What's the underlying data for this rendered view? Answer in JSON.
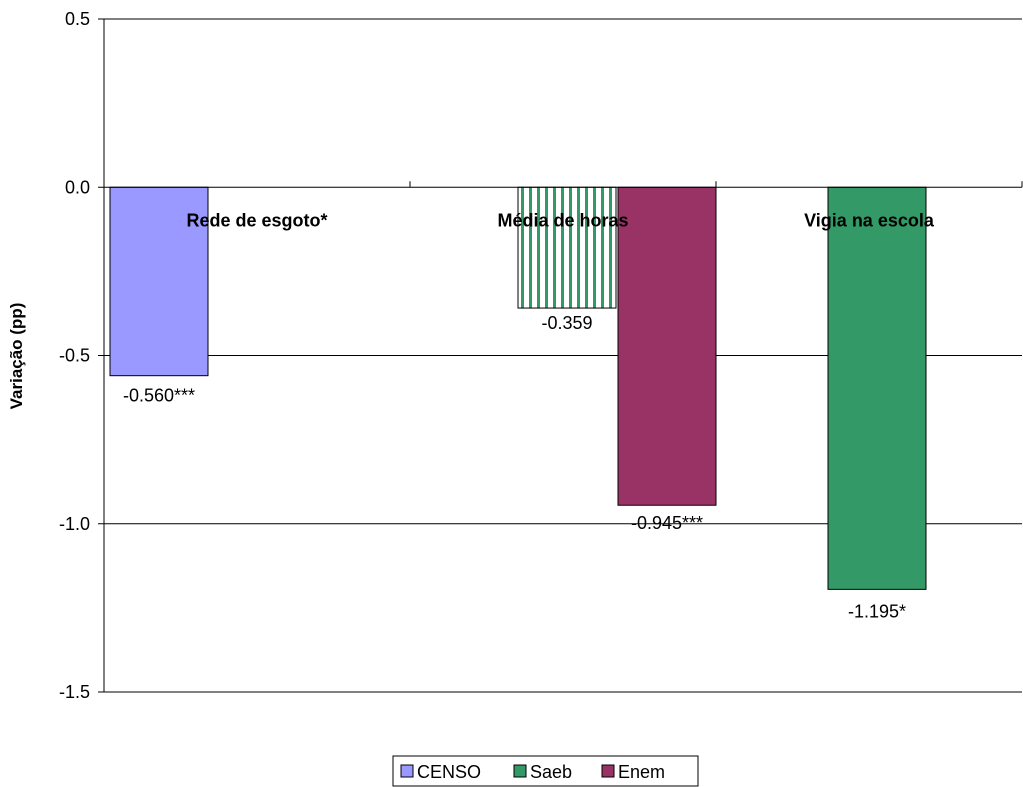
{
  "chart_data": {
    "type": "bar",
    "ylabel": "Variação (pp)",
    "ylim": [
      -1.5,
      0.5
    ],
    "yticks": [
      "0.5",
      "0.0",
      "-0.5",
      "-1.0",
      "-1.5"
    ],
    "ytick_values": [
      0.5,
      0.0,
      -0.5,
      -1.0,
      -1.5
    ],
    "grid": true,
    "legend_position": "bottom",
    "categories": [
      "Rede de esgoto*",
      "Média de horas",
      "Vigia na escola"
    ],
    "series": [
      {
        "name": "CENSO",
        "color": "#9999ff",
        "values": [
          -0.56,
          null,
          null
        ],
        "labels": [
          "-0.560***",
          "",
          ""
        ]
      },
      {
        "name": "Saeb",
        "color": "#339966",
        "values": [
          null,
          -0.359,
          -1.195
        ],
        "labels": [
          "",
          "-0.359",
          "-1.195*"
        ]
      },
      {
        "name": "Enem",
        "color": "#993366",
        "values": [
          null,
          -0.945,
          null
        ],
        "labels": [
          "",
          "-0.945***",
          ""
        ]
      }
    ]
  }
}
